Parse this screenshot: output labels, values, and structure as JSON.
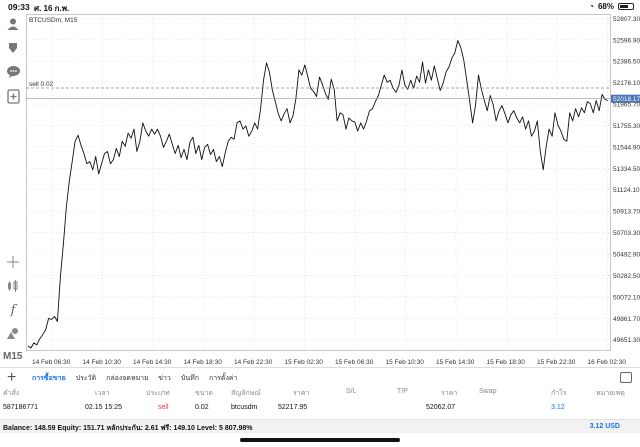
{
  "status_bar": {
    "time": "09:33",
    "date": "ศ. 16 ก.พ.",
    "battery": "68%",
    "battery_level": 0.68
  },
  "left_toolbar": {
    "icons": [
      "account-icon",
      "trade-icon",
      "chat-icon",
      "add-window-icon",
      "crosshair-icon",
      "indicator-icon",
      "function-icon",
      "objects-icon"
    ],
    "timeframe": "M15"
  },
  "chart": {
    "symbol_label": "BTCUSDm, M15",
    "order_line_label": "sell 0.02",
    "current_price": "52018.17",
    "colors": {
      "line": "#111111",
      "grid": "#d8d8d8",
      "current_price_bg": "#4a73b8",
      "order_line": "#888888"
    }
  },
  "chart_data": {
    "type": "line",
    "title": "",
    "xlabel": "",
    "ylabel": "",
    "y_ticks": [
      "52807.30",
      "52596.90",
      "52386.50",
      "52176.10",
      "51965.70",
      "51755.30",
      "51544.90",
      "51334.50",
      "51124.10",
      "50913.70",
      "50703.30",
      "50492.90",
      "50282.50",
      "50072.10",
      "49861.70",
      "49651.30"
    ],
    "x_ticks": [
      "14 Feb 06:30",
      "14 Feb 10:30",
      "14 Feb 14:30",
      "14 Feb 18:30",
      "14 Feb 22:30",
      "15 Feb 02:30",
      "15 Feb 06:30",
      "15 Feb 10:30",
      "15 Feb 14:30",
      "15 Feb 18:30",
      "15 Feb 22:30",
      "16 Feb 02:30"
    ],
    "ylim": [
      49550,
      52850
    ],
    "order_line": 52123,
    "current_price": 52018.17,
    "close": [
      49590,
      49570,
      49620,
      49600,
      49660,
      49700,
      49750,
      49860,
      49850,
      49880,
      49830,
      50270,
      50580,
      50950,
      51200,
      51400,
      51600,
      51660,
      51560,
      51480,
      51380,
      51400,
      51320,
      51450,
      51280,
      51380,
      51480,
      51500,
      51380,
      51420,
      51530,
      51450,
      51600,
      51550,
      51680,
      51630,
      51720,
      51500,
      51600,
      51780,
      51700,
      51650,
      51720,
      51670,
      51720,
      51650,
      51540,
      51600,
      51670,
      51570,
      51480,
      51560,
      51440,
      51520,
      51420,
      51590,
      51640,
      51480,
      51560,
      51420,
      51540,
      51570,
      51470,
      51520,
      51400,
      51450,
      51350,
      51490,
      51600,
      51640,
      51620,
      51780,
      51800,
      51720,
      51750,
      51650,
      51700,
      51780,
      51720,
      51920,
      52200,
      52370,
      52280,
      52100,
      51990,
      51870,
      51800,
      51870,
      51920,
      51780,
      51850,
      52020,
      52300,
      52250,
      52350,
      52240,
      52120,
      52090,
      52040,
      52230,
      52160,
      52070,
      52010,
      52210,
      52110,
      51800,
      51880,
      51860,
      51720,
      51830,
      51800,
      51790,
      51700,
      51780,
      51720,
      51800,
      51900,
      51920,
      51990,
      52050,
      52150,
      52250,
      52180,
      52200,
      52120,
      52080,
      52150,
      52300,
      52150,
      52110,
      52200,
      52120,
      52240,
      52180,
      52380,
      52170,
      52300,
      52200,
      52340,
      52220,
      52100,
      52170,
      52280,
      52330,
      52420,
      52470,
      52590,
      52520,
      52400,
      52200,
      52000,
      51780,
      51950,
      52250,
      52110,
      52000,
      51900,
      52050,
      51960,
      51800,
      51900,
      51950,
      51870,
      51780,
      51860,
      51900,
      51830,
      51780,
      51840,
      51720,
      51800,
      51650,
      51700,
      51800,
      51500,
      51320,
      51550,
      51720,
      51650,
      51880,
      51760,
      51700,
      51620,
      51600,
      51880,
      51800,
      51920,
      51840,
      51930,
      51880,
      51990,
      51970,
      51880,
      52000,
      51900,
      52060,
      52010,
      52000
    ]
  },
  "tabs": {
    "items": [
      "การซื้อขาย",
      "ประวัติ",
      "กล่องจดหมาย",
      "ข่าว",
      "บันทึก",
      "การตั้งค่า"
    ]
  },
  "trade_table": {
    "headers": {
      "ticket": "คำสั่ง",
      "time": "เวลา",
      "type": "ประเภท",
      "volume": "ขนาด",
      "symbol": "สัญลักษณ์",
      "price": "ราคา",
      "sl": "S/L",
      "tp": "T/P",
      "current_price": "ราคา",
      "swap": "Swap",
      "profit": "กำไร",
      "comment": "หมายเหตุ"
    },
    "row": {
      "ticket": "587186771",
      "time": "02.15 15:25",
      "type": "sell",
      "volume": "0.02",
      "symbol": "btcusdm",
      "price": "52217.95",
      "current_price": "52062.07",
      "profit": "3.12"
    }
  },
  "balance": {
    "text": "Balance: 148.59 Equity: 151.71 หลักประกัน: 2.61 ฟรี: 149.10 Level: 5 807.98%",
    "total": "3.12  USD"
  }
}
